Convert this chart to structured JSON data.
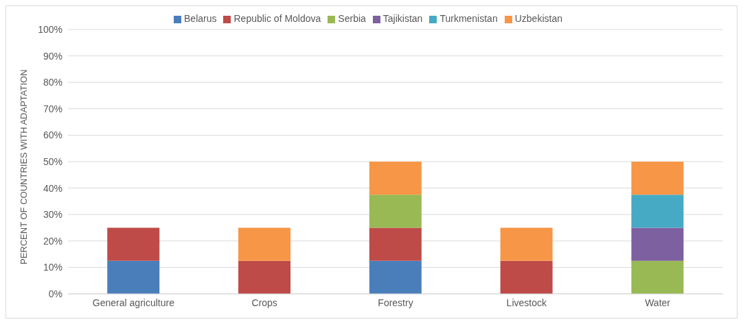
{
  "chart_data": {
    "type": "bar",
    "stacked": true,
    "ylabel": "PERCENT OF COUNTRIES WITH ADAPTATION",
    "categories": [
      "General agriculture",
      "Crops",
      "Forestry",
      "Livestock",
      "Water"
    ],
    "series": [
      {
        "name": "Belarus",
        "color": "#4a7ebb",
        "values": [
          12.5,
          null,
          12.5,
          null,
          null
        ]
      },
      {
        "name": "Republic of Moldova",
        "color": "#be4b48",
        "values": [
          12.5,
          12.5,
          12.5,
          12.5,
          null
        ]
      },
      {
        "name": "Serbia",
        "color": "#98b954",
        "values": [
          null,
          null,
          12.5,
          null,
          12.5
        ]
      },
      {
        "name": "Tajikistan",
        "color": "#7d60a0",
        "values": [
          null,
          null,
          null,
          null,
          12.5
        ]
      },
      {
        "name": "Turkmenistan",
        "color": "#46aac5",
        "values": [
          null,
          null,
          null,
          null,
          12.5
        ]
      },
      {
        "name": "Uzbekistan",
        "color": "#f79646",
        "values": [
          null,
          12.5,
          12.5,
          12.5,
          12.5
        ]
      }
    ],
    "ylim": [
      0,
      100
    ],
    "yticks": [
      {
        "value": 0,
        "label": "0%"
      },
      {
        "value": 10,
        "label": "10%"
      },
      {
        "value": 20,
        "label": "20%"
      },
      {
        "value": 30,
        "label": "30%"
      },
      {
        "value": 40,
        "label": "40%"
      },
      {
        "value": 50,
        "label": "50%"
      },
      {
        "value": 60,
        "label": "60%"
      },
      {
        "value": 70,
        "label": "70%"
      },
      {
        "value": 80,
        "label": "80%"
      },
      {
        "value": 90,
        "label": "90%"
      },
      {
        "value": 100,
        "label": "100%"
      }
    ],
    "grid": "y",
    "legend": "top"
  }
}
